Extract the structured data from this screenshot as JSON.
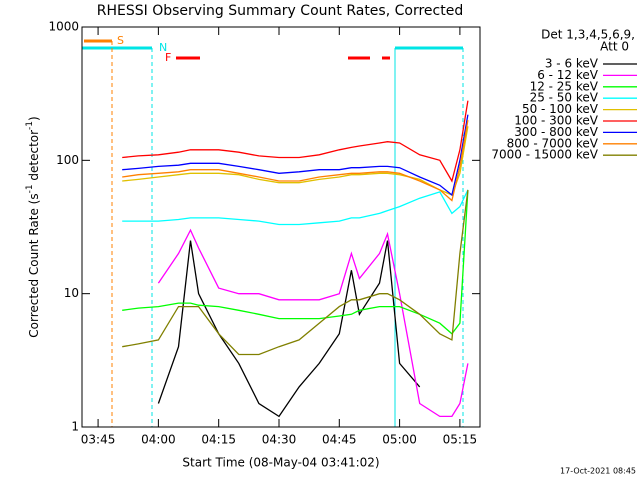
{
  "chart_data": {
    "type": "line",
    "title": "RHESSI Observing Summary Count Rates, Corrected",
    "x_label": "Start Time (08-May-04 03:41:02)",
    "y_label": [
      "Corrected Count Rate (s",
      "-1",
      " detector",
      "-1",
      ")"
    ],
    "legend_title": [
      "Det 1,3,4,5,6,9,",
      "Att 0"
    ],
    "annotations": [
      {
        "text": "S",
        "color": "#ff8000"
      },
      {
        "text": "N",
        "color": "#00e5e5"
      },
      {
        "text": "F",
        "color": "#ff0000"
      }
    ],
    "timestamp": "17-Oct-2021 08:45",
    "log_y": true,
    "xlim": [
      "03:41",
      "05:20"
    ],
    "xticks": [
      "03:45",
      "04:00",
      "04:15",
      "04:30",
      "04:45",
      "05:00",
      "05:15"
    ],
    "ylim": [
      1,
      1000
    ],
    "yticks": [
      1,
      10,
      100,
      1000
    ],
    "x": [
      "03:51",
      "03:55",
      "04:00",
      "04:05",
      "04:08",
      "04:10",
      "04:15",
      "04:20",
      "04:25",
      "04:30",
      "04:35",
      "04:40",
      "04:45",
      "04:48",
      "04:50",
      "04:55",
      "04:57",
      "05:00",
      "05:05",
      "05:10",
      "05:13",
      "05:15",
      "05:17"
    ],
    "series": [
      {
        "name": "3 - 6 keV",
        "color": "#000000",
        "values": [
          null,
          null,
          1.5,
          4,
          25,
          10,
          5,
          3,
          1.5,
          1.2,
          2,
          3,
          5,
          15,
          7,
          12,
          25,
          3,
          2,
          null,
          null,
          null,
          null
        ]
      },
      {
        "name": "6 - 12 keV",
        "color": "#ff00ff",
        "values": [
          null,
          null,
          12,
          20,
          30,
          22,
          11,
          10,
          10,
          9,
          9,
          9,
          10,
          20,
          13,
          20,
          28,
          10,
          1.5,
          1.2,
          1.2,
          1.5,
          3
        ]
      },
      {
        "name": "12 - 25 keV",
        "color": "#00ff00",
        "values": [
          7.5,
          7.8,
          8,
          8.5,
          8.5,
          8.2,
          8,
          7.5,
          7,
          6.5,
          6.5,
          6.5,
          6.8,
          7,
          7.5,
          8,
          8,
          8,
          7,
          6,
          5,
          6,
          60
        ]
      },
      {
        "name": "25 - 50 keV",
        "color": "#00ffff",
        "values": [
          35,
          35,
          35,
          36,
          37,
          37,
          37,
          36,
          35,
          33,
          33,
          34,
          35,
          37,
          37,
          40,
          42,
          45,
          52,
          58,
          40,
          45,
          60
        ]
      },
      {
        "name": "50 - 100 keV",
        "color": "#e0c000",
        "values": [
          70,
          72,
          75,
          78,
          80,
          80,
          80,
          78,
          72,
          68,
          68,
          72,
          75,
          78,
          78,
          80,
          80,
          78,
          72,
          60,
          55,
          80,
          180
        ]
      },
      {
        "name": "100 - 300 keV",
        "color": "#ff0000",
        "values": [
          105,
          108,
          110,
          115,
          120,
          120,
          120,
          115,
          108,
          105,
          105,
          110,
          120,
          125,
          128,
          135,
          138,
          135,
          110,
          100,
          70,
          120,
          280
        ]
      },
      {
        "name": "300 - 800 keV",
        "color": "#0000ff",
        "values": [
          85,
          87,
          90,
          92,
          95,
          95,
          95,
          90,
          85,
          80,
          82,
          85,
          85,
          88,
          88,
          90,
          90,
          88,
          75,
          65,
          55,
          100,
          220
        ]
      },
      {
        "name": "800 - 7000 keV",
        "color": "#ff8000",
        "values": [
          75,
          78,
          80,
          82,
          85,
          85,
          85,
          80,
          75,
          70,
          70,
          75,
          78,
          80,
          80,
          82,
          82,
          80,
          70,
          60,
          50,
          90,
          200
        ]
      },
      {
        "name": "7000 - 15000 keV",
        "color": "#808000",
        "values": [
          4,
          4.2,
          4.5,
          8,
          8,
          8,
          5,
          3.5,
          3.5,
          4,
          4.5,
          6,
          8,
          9,
          9,
          10,
          10,
          9,
          7,
          5,
          4.5,
          20,
          60
        ]
      }
    ]
  }
}
